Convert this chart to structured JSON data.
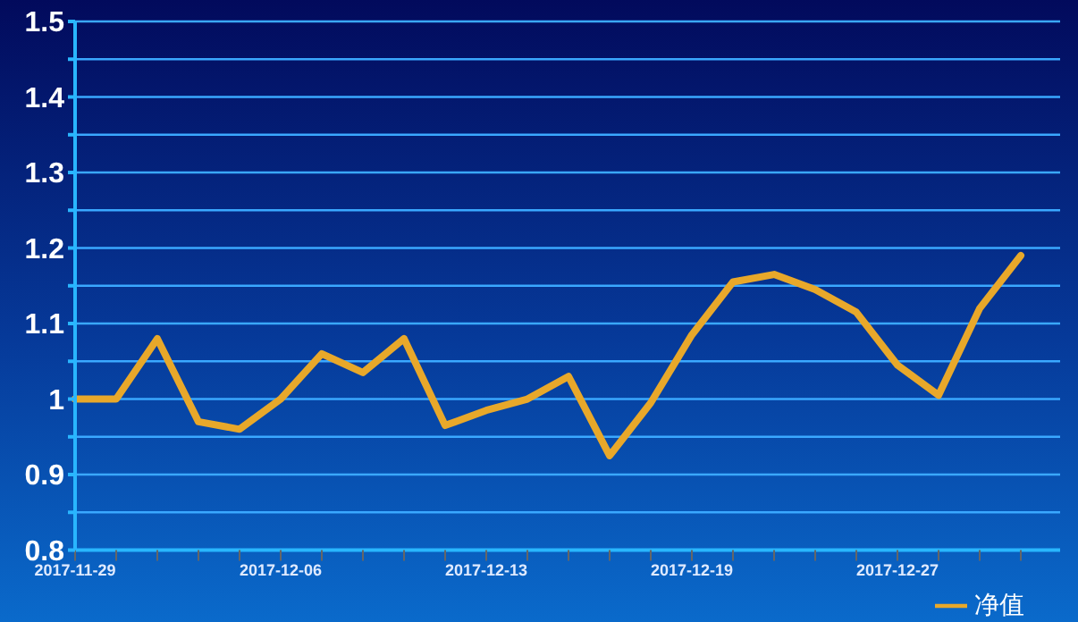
{
  "chart_data": {
    "type": "line",
    "categories": [
      "2017-11-29",
      null,
      null,
      null,
      null,
      "2017-12-06",
      null,
      null,
      null,
      null,
      "2017-12-13",
      null,
      null,
      null,
      null,
      "2017-12-19",
      null,
      null,
      null,
      null,
      "2017-12-27",
      null,
      null,
      null
    ],
    "series": [
      {
        "name": "净值",
        "color": "#e8a82a",
        "values": [
          1.0,
          1.0,
          1.08,
          0.97,
          0.96,
          1.0,
          1.06,
          1.035,
          1.08,
          0.965,
          0.985,
          1.0,
          1.03,
          0.925,
          0.995,
          1.085,
          1.155,
          1.165,
          1.145,
          1.115,
          1.045,
          1.005,
          1.12,
          1.19
        ]
      }
    ],
    "ylim": [
      0.8,
      1.5
    ],
    "yticks": [
      0.8,
      {
        "value": 0.85,
        "label": null
      },
      0.9,
      {
        "value": 0.95,
        "label": null
      },
      1,
      {
        "value": 1.05,
        "label": null
      },
      1.1,
      {
        "value": 1.15,
        "label": null
      },
      1.2,
      {
        "value": 1.25,
        "label": null
      },
      1.3,
      {
        "value": 1.35,
        "label": null
      },
      1.4,
      {
        "value": 1.45,
        "label": null
      },
      1.5
    ],
    "grid": "y",
    "legend": "bottom right",
    "marker": "none",
    "line_style": "solid"
  }
}
